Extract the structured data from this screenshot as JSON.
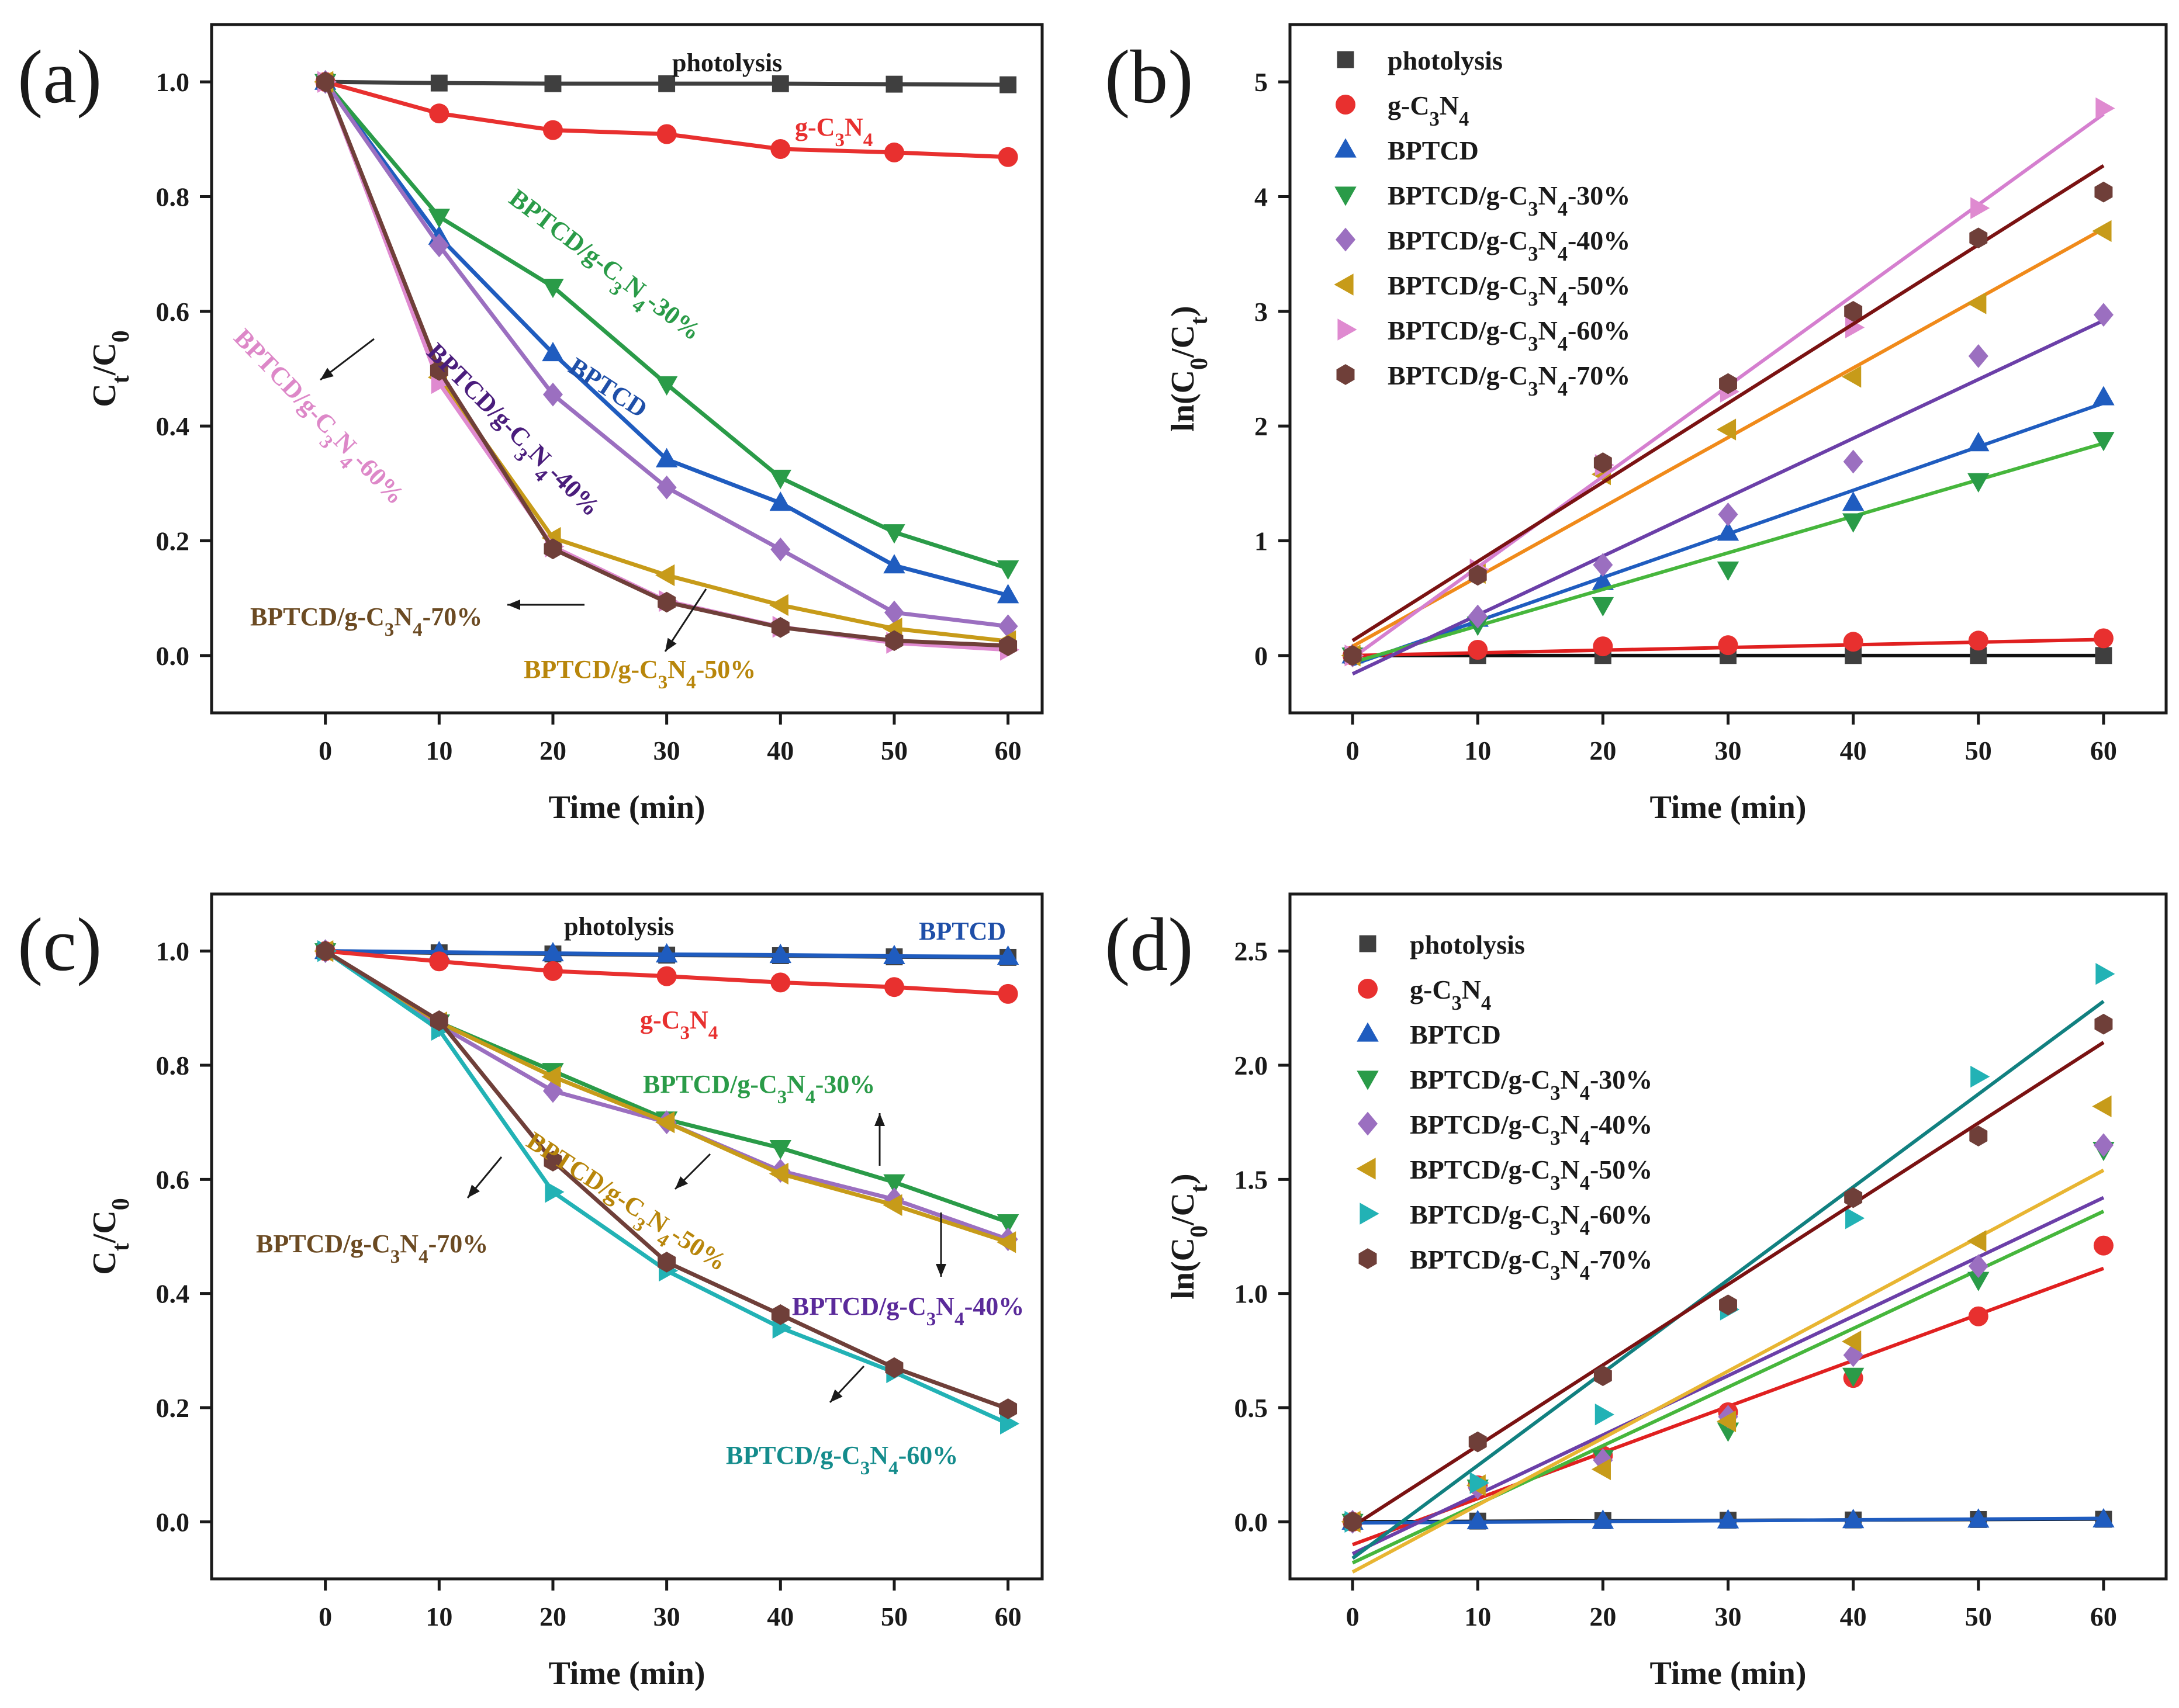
{
  "figure": {
    "colors": {
      "photolysis": "#3f3f3f",
      "gC3N4": "#e8302f",
      "BPTCD": "#1f5cbf",
      "p30": "#2a9b48",
      "p40": "#9b6fc0",
      "p50": "#c79b19",
      "p60": "#df8ad0",
      "p70": "#6f3f39",
      "p60_cd": "#22b2b5",
      "fit_photolysis": "#111111",
      "fit_gC3N4": "#e02020",
      "fit_BPTCD": "#1f5cbf",
      "fit_p30": "#46b63c",
      "fit_p40": "#6b3fa8",
      "fit_p50_b": "#f08a1a",
      "fit_p50_d": "#e8b532",
      "fit_p60_b": "#d57fcf",
      "fit_p60_d": "#118080",
      "fit_p70": "#7a1212",
      "annot_p40_a": "#4a1d7c",
      "annot_p70": "#6b4a22",
      "annot_p50": "#b8860b",
      "annot_BPTCD_a": "#1f4fa8",
      "annot_p30": "#2a9b48",
      "annot_p60_a": "#dd88c8",
      "annot_p40_c": "#5a2a9a",
      "annot_p60_c": "#148c8c",
      "annot_BPTCD_c": "#1f4fa8"
    }
  },
  "chart_data": [
    {
      "id": "a",
      "type": "line",
      "panel_label": "(a)",
      "xlabel": "Time (min)",
      "ylabel": "C_t/C_0",
      "xlim": [
        -10,
        63
      ],
      "ylim": [
        -0.1,
        1.1
      ],
      "xticks": [
        0,
        10,
        20,
        30,
        40,
        50,
        60
      ],
      "yticks": [
        0.0,
        0.2,
        0.4,
        0.6,
        0.8,
        1.0
      ],
      "ytick_labels": [
        "0.0",
        "0.2",
        "0.4",
        "0.6",
        "0.8",
        "1.0"
      ],
      "x": [
        0,
        10,
        20,
        30,
        40,
        50,
        60
      ],
      "series": [
        {
          "key": "photolysis",
          "name": "photolysis",
          "marker": "square",
          "values": [
            1.0,
            0.998,
            0.997,
            0.997,
            0.997,
            0.996,
            0.995
          ]
        },
        {
          "key": "gC3N4",
          "name": "g-C3N4",
          "marker": "circle",
          "values": [
            1.0,
            0.945,
            0.916,
            0.909,
            0.883,
            0.877,
            0.869
          ]
        },
        {
          "key": "BPTCD",
          "name": "BPTCD",
          "marker": "triangle-up",
          "values": [
            1.0,
            0.73,
            0.527,
            0.342,
            0.266,
            0.157,
            0.105
          ]
        },
        {
          "key": "p30",
          "name": "BPTCD/g-C3N4-30%",
          "marker": "triangle-down",
          "values": [
            1.0,
            0.765,
            0.643,
            0.473,
            0.31,
            0.215,
            0.152
          ]
        },
        {
          "key": "p40",
          "name": "BPTCD/g-C3N4-40%",
          "marker": "diamond",
          "values": [
            1.0,
            0.715,
            0.455,
            0.293,
            0.185,
            0.075,
            0.051
          ]
        },
        {
          "key": "p50",
          "name": "BPTCD/g-C3N4-50%",
          "marker": "triangle-left",
          "values": [
            1.0,
            0.485,
            0.205,
            0.14,
            0.088,
            0.047,
            0.025
          ]
        },
        {
          "key": "p60",
          "name": "BPTCD/g-C3N4-60%",
          "marker": "triangle-right",
          "values": [
            1.0,
            0.475,
            0.19,
            0.095,
            0.05,
            0.022,
            0.01
          ]
        },
        {
          "key": "p70",
          "name": "BPTCD/g-C3N4-70%",
          "marker": "hexagon",
          "values": [
            1.0,
            0.497,
            0.186,
            0.093,
            0.049,
            0.026,
            0.017
          ]
        }
      ]
    },
    {
      "id": "b",
      "type": "scatter",
      "panel_label": "(b)",
      "xlabel": "Time (min)",
      "ylabel": "ln(C_0/C_t)",
      "xlim": [
        -5,
        65
      ],
      "ylim": [
        -0.5,
        5.5
      ],
      "xticks": [
        0,
        10,
        20,
        30,
        40,
        50,
        60
      ],
      "yticks": [
        0,
        1,
        2,
        3,
        4,
        5
      ],
      "ytick_labels": [
        "0",
        "1",
        "2",
        "3",
        "4",
        "5"
      ],
      "x": [
        0,
        10,
        20,
        30,
        40,
        50,
        60
      ],
      "series": [
        {
          "key": "photolysis",
          "name": "photolysis",
          "marker": "square",
          "values": [
            0,
            0,
            0,
            0,
            0,
            0,
            0
          ],
          "fit": [
            0,
            0
          ]
        },
        {
          "key": "gC3N4",
          "name": "g-C3N4",
          "marker": "circle",
          "values": [
            0,
            0.05,
            0.08,
            0.09,
            0.12,
            0.13,
            0.15
          ],
          "fit": [
            0.0,
            0.14
          ]
        },
        {
          "key": "BPTCD",
          "name": "BPTCD",
          "marker": "triangle-up",
          "values": [
            0,
            0.32,
            0.64,
            1.07,
            1.33,
            1.85,
            2.25
          ],
          "fit": [
            -0.08,
            2.2
          ]
        },
        {
          "key": "p30",
          "name": "BPTCD/g-C3N4-30%",
          "marker": "triangle-down",
          "values": [
            0,
            0.27,
            0.44,
            0.75,
            1.17,
            1.52,
            1.88
          ],
          "fit": [
            -0.06,
            1.85
          ]
        },
        {
          "key": "p40",
          "name": "BPTCD/g-C3N4-40%",
          "marker": "diamond",
          "values": [
            0,
            0.34,
            0.79,
            1.23,
            1.69,
            2.61,
            2.97
          ],
          "fit": [
            -0.16,
            2.92
          ]
        },
        {
          "key": "p50",
          "name": "BPTCD/g-C3N4-50%",
          "marker": "triangle-left",
          "values": [
            0,
            0.72,
            1.58,
            1.97,
            2.43,
            3.07,
            3.7
          ],
          "fit": [
            0.08,
            3.72
          ]
        },
        {
          "key": "p60",
          "name": "BPTCD/g-C3N4-60%",
          "marker": "triangle-right",
          "values": [
            0,
            0.75,
            1.66,
            2.3,
            2.86,
            3.9,
            4.77
          ],
          "fit": [
            -0.02,
            4.72
          ]
        },
        {
          "key": "p70",
          "name": "BPTCD/g-C3N4-70%",
          "marker": "hexagon",
          "values": [
            0,
            0.7,
            1.68,
            2.37,
            3.0,
            3.64,
            4.04
          ],
          "fit": [
            0.13,
            4.27
          ]
        }
      ]
    },
    {
      "id": "c",
      "type": "line",
      "panel_label": "(c)",
      "xlabel": "Time (min)",
      "ylabel": "C_t/C_0",
      "xlim": [
        -10,
        63
      ],
      "ylim": [
        -0.1,
        1.1
      ],
      "xticks": [
        0,
        10,
        20,
        30,
        40,
        50,
        60
      ],
      "yticks": [
        0.0,
        0.2,
        0.4,
        0.6,
        0.8,
        1.0
      ],
      "ytick_labels": [
        "0.0",
        "0.2",
        "0.4",
        "0.6",
        "0.8",
        "1.0"
      ],
      "x": [
        0,
        10,
        20,
        30,
        40,
        50,
        60
      ],
      "series": [
        {
          "key": "photolysis",
          "name": "photolysis",
          "marker": "square",
          "values": [
            1.0,
            0.997,
            0.995,
            0.993,
            0.992,
            0.99,
            0.989
          ]
        },
        {
          "key": "BPTCD",
          "name": "BPTCD",
          "marker": "triangle-up",
          "values": [
            1.0,
            0.998,
            0.996,
            0.994,
            0.993,
            0.991,
            0.99
          ]
        },
        {
          "key": "gC3N4",
          "name": "g-C3N4",
          "marker": "circle",
          "values": [
            1.0,
            0.982,
            0.965,
            0.956,
            0.945,
            0.937,
            0.925
          ]
        },
        {
          "key": "p30",
          "name": "BPTCD/g-C3N4-30%",
          "marker": "triangle-down",
          "values": [
            1.0,
            0.875,
            0.79,
            0.705,
            0.655,
            0.595,
            0.525
          ]
        },
        {
          "key": "p40",
          "name": "BPTCD/g-C3N4-40%",
          "marker": "diamond",
          "values": [
            1.0,
            0.87,
            0.755,
            0.7,
            0.615,
            0.565,
            0.495
          ]
        },
        {
          "key": "p50",
          "name": "BPTCD/g-C3N4-50%",
          "marker": "triangle-left",
          "values": [
            1.0,
            0.875,
            0.78,
            0.7,
            0.61,
            0.555,
            0.49
          ]
        },
        {
          "key": "p60",
          "name": "BPTCD/g-C3N4-60%",
          "marker": "triangle-right",
          "values": [
            1.0,
            0.862,
            0.578,
            0.44,
            0.34,
            0.262,
            0.172
          ]
        },
        {
          "key": "p70",
          "name": "BPTCD/g-C3N4-70%",
          "marker": "hexagon",
          "values": [
            1.0,
            0.878,
            0.632,
            0.455,
            0.363,
            0.27,
            0.198
          ]
        }
      ]
    },
    {
      "id": "d",
      "type": "scatter",
      "panel_label": "(d)",
      "xlabel": "Time (min)",
      "ylabel": "ln(C_0/C_t)",
      "xlim": [
        -5,
        65
      ],
      "ylim": [
        -0.25,
        2.75
      ],
      "xticks": [
        0,
        10,
        20,
        30,
        40,
        50,
        60
      ],
      "yticks": [
        0.0,
        0.5,
        1.0,
        1.5,
        2.0,
        2.5
      ],
      "ytick_labels": [
        "0.0",
        "0.5",
        "1.0",
        "1.5",
        "2.0",
        "2.5"
      ],
      "x": [
        0,
        10,
        20,
        30,
        40,
        50,
        60
      ],
      "series": [
        {
          "key": "photolysis",
          "name": "photolysis",
          "marker": "square",
          "values": [
            0,
            0.003,
            0.005,
            0.007,
            0.008,
            0.01,
            0.011
          ],
          "fit": [
            0.0,
            0.012
          ]
        },
        {
          "key": "gC3N4",
          "name": "g-C3N4",
          "marker": "circle",
          "values": [
            0,
            0.16,
            0.29,
            0.48,
            0.63,
            0.9,
            1.21
          ],
          "fit": [
            -0.1,
            1.11
          ]
        },
        {
          "key": "BPTCD",
          "name": "BPTCD",
          "marker": "triangle-up",
          "values": [
            0,
            0.002,
            0.004,
            0.006,
            0.007,
            0.009,
            0.01
          ],
          "fit": [
            -0.005,
            0.015
          ]
        },
        {
          "key": "p30",
          "name": "BPTCD/g-C3N4-30%",
          "marker": "triangle-down",
          "values": [
            0,
            0.15,
            0.28,
            0.4,
            0.64,
            1.06,
            1.63
          ],
          "fit": [
            -0.18,
            1.36
          ]
        },
        {
          "key": "p40",
          "name": "BPTCD/g-C3N4-40%",
          "marker": "diamond",
          "values": [
            0,
            0.15,
            0.27,
            0.46,
            0.73,
            1.12,
            1.65
          ],
          "fit": [
            -0.14,
            1.42
          ]
        },
        {
          "key": "p50",
          "name": "BPTCD/g-C3N4-50%",
          "marker": "triangle-left",
          "values": [
            0,
            0.16,
            0.23,
            0.44,
            0.79,
            1.23,
            1.82
          ],
          "fit": [
            -0.22,
            1.54
          ]
        },
        {
          "key": "p60",
          "name": "BPTCD/g-C3N4-60%",
          "marker": "triangle-right",
          "values": [
            0,
            0.17,
            0.47,
            0.93,
            1.33,
            1.95,
            2.4
          ],
          "fit": [
            -0.16,
            2.28
          ]
        },
        {
          "key": "p70",
          "name": "BPTCD/g-C3N4-70%",
          "marker": "hexagon",
          "values": [
            0,
            0.35,
            0.64,
            0.95,
            1.42,
            1.69,
            2.18
          ],
          "fit": [
            -0.02,
            2.1
          ]
        }
      ]
    }
  ],
  "annotations": {
    "a": {
      "photolysis": "photolysis",
      "gC3N4": {
        "main": "g-C",
        "sub1": "3",
        "mid": "N",
        "sub2": "4"
      },
      "BPTCD": "BPTCD",
      "p30": {
        "main": "BPTCD/g-C",
        "sub1": "3",
        "mid": "N",
        "sub2": "4",
        "end": "-30%"
      },
      "p40": {
        "main": "BPTCD/g-C",
        "sub1": "3",
        "mid": "N",
        "sub2": "4",
        "end": "-40%"
      },
      "p50": {
        "main": "BPTCD/g-C",
        "sub1": "3",
        "mid": "N",
        "sub2": "4",
        "end": "-50%"
      },
      "p60": {
        "main": "BPTCD/g-C",
        "sub1": "3",
        "mid": "N",
        "sub2": "4",
        "end": "-60%"
      },
      "p70": {
        "main": "BPTCD/g-C",
        "sub1": "3",
        "mid": "N",
        "sub2": "4",
        "end": "-70%"
      }
    },
    "c": {
      "photolysis": "photolysis",
      "BPTCD": "BPTCD",
      "gC3N4": {
        "main": "g-C",
        "sub1": "3",
        "mid": "N",
        "sub2": "4"
      },
      "p30": {
        "main": "BPTCD/g-C",
        "sub1": "3",
        "mid": "N",
        "sub2": "4",
        "end": "-30%"
      },
      "p40": {
        "main": "BPTCD/g-C",
        "sub1": "3",
        "mid": "N",
        "sub2": "4",
        "end": "-40%"
      },
      "p50": {
        "main": "BPTCD/g-C",
        "sub1": "3",
        "mid": "N",
        "sub2": "4",
        "end": "-50%"
      },
      "p60": {
        "main": "BPTCD/g-C",
        "sub1": "3",
        "mid": "N",
        "sub2": "4",
        "end": "-60%"
      },
      "p70": {
        "main": "BPTCD/g-C",
        "sub1": "3",
        "mid": "N",
        "sub2": "4",
        "end": "-70%"
      }
    }
  },
  "legend": {
    "photolysis": "photolysis",
    "gC3N4": {
      "main": "g-C",
      "sub1": "3",
      "mid": "N",
      "sub2": "4"
    },
    "BPTCD": "BPTCD",
    "p30": {
      "main": "BPTCD/g-C",
      "sub1": "3",
      "mid": "N",
      "sub2": "4",
      "end": "-30%"
    },
    "p40": {
      "main": "BPTCD/g-C",
      "sub1": "3",
      "mid": "N",
      "sub2": "4",
      "end": "-40%"
    },
    "p50": {
      "main": "BPTCD/g-C",
      "sub1": "3",
      "mid": "N",
      "sub2": "4",
      "end": "-50%"
    },
    "p60": {
      "main": "BPTCD/g-C",
      "sub1": "3",
      "mid": "N",
      "sub2": "4",
      "end": "-60%"
    },
    "p70": {
      "main": "BPTCD/g-C",
      "sub1": "3",
      "mid": "N",
      "sub2": "4",
      "end": "-70%"
    }
  },
  "axis_titles": {
    "x": "Time (min)",
    "y_ct": {
      "a": "C",
      "b": "t",
      "c": "/C",
      "d": "0"
    },
    "y_ln": {
      "a": "ln(C",
      "b": "0",
      "c": "/C",
      "d": "t",
      "e": ")"
    }
  }
}
